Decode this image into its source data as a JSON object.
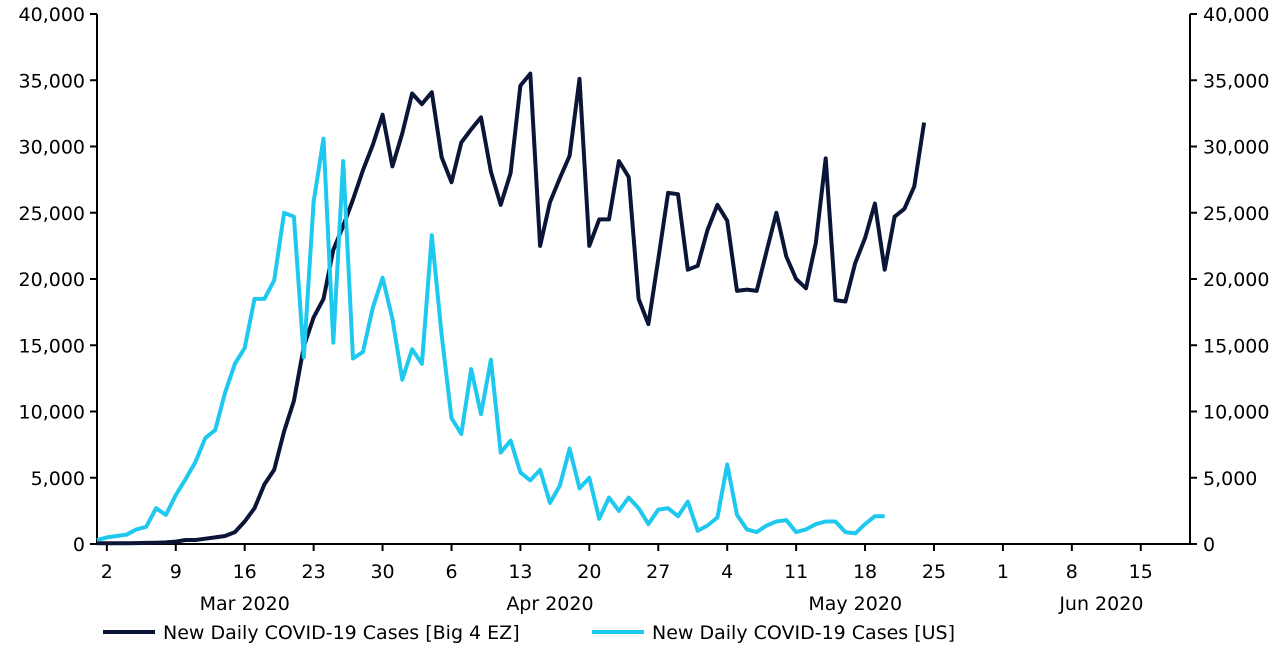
{
  "chart_data": {
    "type": "line",
    "title": "",
    "xlabel": "",
    "ylabel": "",
    "x_start_label": "2020-03-01",
    "ylim": [
      0,
      40000
    ],
    "y_ticks": [
      "0",
      "5,000",
      "10,000",
      "15,000",
      "20,000",
      "25,000",
      "30,000",
      "35,000",
      "40,000"
    ],
    "y_tick_values": [
      0,
      5000,
      10000,
      15000,
      20000,
      25000,
      30000,
      35000,
      40000
    ],
    "x_ticks": [
      {
        "day": 2,
        "label": "2"
      },
      {
        "day": 9,
        "label": "9"
      },
      {
        "day": 16,
        "label": "16"
      },
      {
        "day": 23,
        "label": "23"
      },
      {
        "day": 30,
        "label": "30"
      },
      {
        "day": 37,
        "label": "6"
      },
      {
        "day": 44,
        "label": "13"
      },
      {
        "day": 51,
        "label": "20"
      },
      {
        "day": 58,
        "label": "27"
      },
      {
        "day": 65,
        "label": "4"
      },
      {
        "day": 72,
        "label": "11"
      },
      {
        "day": 79,
        "label": "18"
      },
      {
        "day": 86,
        "label": "25"
      },
      {
        "day": 93,
        "label": "1"
      },
      {
        "day": 100,
        "label": "8"
      },
      {
        "day": 107,
        "label": "15"
      }
    ],
    "month_labels": [
      {
        "day": 16,
        "label": "Mar 2020"
      },
      {
        "day": 47,
        "label": "Apr 2020"
      },
      {
        "day": 78,
        "label": "May 2020"
      },
      {
        "day": 103,
        "label": "Jun 2020"
      }
    ],
    "x_range": [
      1,
      112
    ],
    "grid": false,
    "legend_position": "bottom",
    "series": [
      {
        "name": "New Daily COVID-19 Cases [Big 4 EZ]",
        "color": "#0a1538",
        "axis": "left",
        "values": [
          50,
          50,
          50,
          60,
          70,
          80,
          100,
          120,
          180,
          300,
          300,
          400,
          500,
          600,
          900,
          1700,
          2700,
          4500,
          5600,
          8500,
          10800,
          14900,
          17100,
          18500,
          22200,
          24000,
          26000,
          28200,
          30100,
          32400,
          28500,
          31000,
          34000,
          33200,
          34100,
          29200,
          27300,
          30300,
          31300,
          32200,
          28100,
          25600,
          28000,
          34600,
          35500,
          22500,
          25800,
          27600,
          29300,
          35100,
          22500,
          24500,
          24500,
          28900,
          27700,
          18500,
          16600,
          21500,
          26500,
          26400,
          20700,
          21000,
          23700,
          25600,
          24400,
          19100,
          19200,
          19100,
          22100,
          25000,
          21700,
          20000,
          19300,
          22700,
          29100,
          18400,
          18300,
          21200,
          23100,
          25700,
          20700,
          24700,
          25300,
          27000,
          31800
        ]
      },
      {
        "name": "New Daily COVID-19 Cases [US]",
        "color": "#1ec8ef",
        "axis": "right",
        "values": [
          300,
          500,
          600,
          700,
          1100,
          1300,
          2700,
          2200,
          3700,
          4900,
          6200,
          8000,
          8600,
          11400,
          13600,
          14800,
          18500,
          18500,
          19900,
          25000,
          24700,
          14100,
          25800,
          30600,
          15200,
          28900,
          14000,
          14500,
          17800,
          20100,
          17000,
          12400,
          14700,
          13600,
          23300,
          15800,
          9500,
          8300,
          13200,
          9800,
          13900,
          6900,
          7800,
          5400,
          4800,
          5600,
          3100,
          4400,
          7200,
          4200,
          5000,
          1900,
          3500,
          2500,
          3500,
          2700,
          1500,
          2600,
          2700,
          2100,
          3200,
          1000,
          1400,
          2000,
          6000,
          2200,
          1100,
          900,
          1400,
          1700,
          1800,
          900,
          1100,
          1500,
          1700,
          1700,
          900,
          800,
          1500,
          2100,
          2100
        ]
      }
    ]
  },
  "legend": [
    {
      "label": "New Daily COVID-19 Cases [Big 4 EZ]",
      "color": "#0a1538"
    },
    {
      "label": "New Daily COVID-19 Cases [US]",
      "color": "#1ec8ef"
    }
  ]
}
